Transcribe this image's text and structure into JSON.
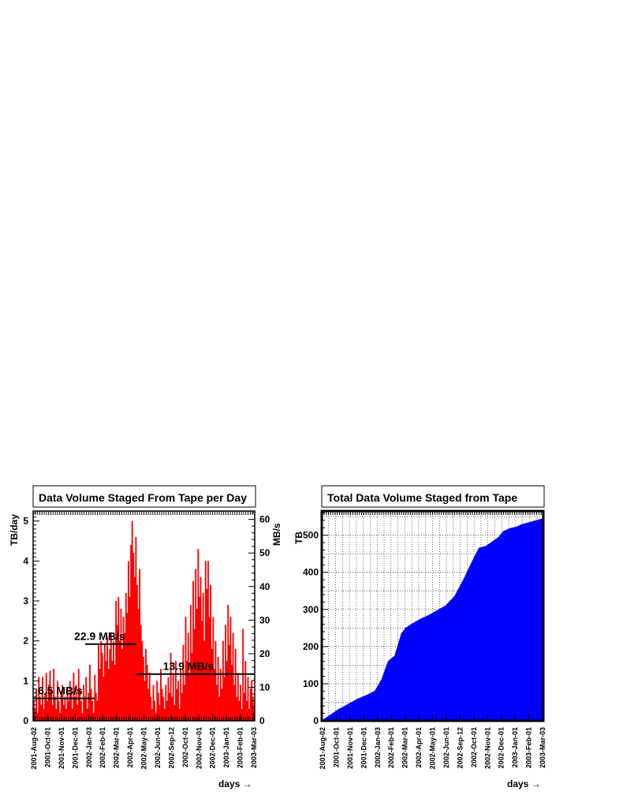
{
  "chart_data": [
    {
      "type": "bar",
      "title": "Data Volume Staged From Tape per Day",
      "ylabel": "TB/day",
      "y2label": "MB/s",
      "xlabel": "days →",
      "ylim": [
        0,
        5.25
      ],
      "y2lim": [
        0,
        62.5
      ],
      "yticks": [
        0,
        1,
        2,
        3,
        4,
        5
      ],
      "y2ticks": [
        0,
        10,
        20,
        30,
        40,
        50,
        60
      ],
      "xtick_labels": [
        "2001-Aug-02",
        "2001-Oct-01",
        "2001-Nov-01",
        "2001-Dec-01",
        "2002-Jan-03",
        "2002-Feb-01",
        "2002-Mar-01",
        "2002-Apr-01",
        "2002-May-01",
        "2002-Jun-01",
        "2002-Sep-12",
        "2002-Oct-01",
        "2002-Nov-01",
        "2002-Dec-01",
        "2003-Jan-01",
        "2003-Feb-01",
        "2003-Mar-03"
      ],
      "color": "#ff0000",
      "values": [
        0.5,
        0.3,
        0.8,
        0.2,
        1.1,
        0.6,
        0.4,
        1.1,
        0.3,
        0.7,
        1.2,
        0.5,
        0.9,
        1.25,
        0.8,
        0.4,
        1.3,
        0.6,
        0.3,
        1.0,
        0.5,
        0.2,
        0.7,
        0.9,
        0.4,
        0.6,
        0.3,
        0.8,
        0.5,
        1.0,
        0.7,
        0.3,
        1.2,
        0.6,
        0.9,
        0.4,
        1.3,
        0.8,
        0.5,
        0.2,
        0.9,
        0.6,
        1.1,
        0.3,
        0.7,
        1.4,
        0.8,
        0.5,
        0.2,
        1.15,
        0.7,
        0.5,
        1.9,
        1.3,
        2.0,
        1.7,
        1.1,
        1.9,
        1.5,
        2.1,
        1.3,
        1.8,
        2.2,
        1.5,
        2.0,
        1.4,
        3.0,
        2.4,
        3.1,
        2.0,
        2.8,
        1.8,
        2.6,
        2.2,
        3.2,
        2.7,
        4.0,
        3.1,
        4.4,
        5.0,
        4.2,
        3.6,
        4.6,
        3.4,
        2.8,
        3.8,
        2.4,
        2.0,
        1.6,
        1.0,
        1.8,
        1.4,
        0.8,
        1.2,
        0.6,
        0.3,
        0.9,
        0.5,
        0.2,
        1.0,
        0.7,
        0.4,
        1.3,
        0.8,
        0.6,
        0.3,
        0.9,
        0.5,
        1.1,
        0.7,
        1.7,
        0.6,
        1.2,
        0.4,
        1.5,
        0.8,
        1.0,
        0.3,
        1.3,
        0.7,
        1.9,
        0.9,
        2.6,
        1.5,
        2.2,
        1.2,
        2.9,
        1.7,
        3.5,
        2.3,
        3.8,
        2.8,
        4.3,
        3.1,
        3.6,
        2.5,
        3.2,
        2.0,
        4.0,
        3.3,
        4.0,
        2.6,
        3.4,
        1.8,
        2.6,
        1.3,
        2.0,
        0.9,
        1.6,
        0.6,
        1.3,
        0.8,
        2.0,
        1.1,
        2.4,
        1.5,
        2.9,
        1.9,
        2.6,
        1.4,
        2.2,
        0.9,
        1.8,
        0.6,
        1.2,
        0.5,
        0.9,
        0.3,
        2.3,
        0.7,
        1.5,
        0.5,
        1.1,
        0.3,
        0.8,
        1.0,
        0.6,
        0.4
      ],
      "segments": [
        {
          "label": "6.5 MB/s",
          "x0": 0.0,
          "x1": 0.276,
          "y": 0.56
        },
        {
          "label": "22.9 MB/s",
          "x0": 0.235,
          "x1": 0.465,
          "y": 1.92
        },
        {
          "label": "13.9 MB/s",
          "x0": 0.465,
          "x1": 1.0,
          "y": 1.17
        }
      ]
    },
    {
      "type": "area",
      "title": "Total Data Volume Staged from Tape",
      "ylabel": "TB",
      "xlabel": "days →",
      "ylim": [
        0,
        565
      ],
      "yticks": [
        0,
        100,
        200,
        300,
        400,
        500
      ],
      "grid": true,
      "xtick_labels": [
        "2001-Aug-02",
        "2001-Oct-01",
        "2001-Nov-01",
        "2001-Dec-01",
        "2002-Jan-03",
        "2002-Feb-01",
        "2002-Mar-01",
        "2002-Apr-01",
        "2002-May-01",
        "2002-Jun-01",
        "2002-Sep-12",
        "2002-Oct-01",
        "2002-Nov-01",
        "2002-Dec-01",
        "2003-Jan-01",
        "2003-Feb-01",
        "2003-Mar-03"
      ],
      "color": "#0000ff",
      "x_frac": [
        0,
        0.02,
        0.05,
        0.08,
        0.1,
        0.13,
        0.16,
        0.2,
        0.24,
        0.27,
        0.3,
        0.33,
        0.36,
        0.38,
        0.4,
        0.42,
        0.44,
        0.46,
        0.48,
        0.5,
        0.53,
        0.56,
        0.6,
        0.64,
        0.68,
        0.71,
        0.74,
        0.77,
        0.8,
        0.82,
        0.85,
        0.88,
        0.9,
        0.93,
        0.96,
        1.0
      ],
      "values": [
        0,
        8,
        20,
        32,
        38,
        48,
        58,
        68,
        80,
        110,
        160,
        175,
        235,
        250,
        258,
        265,
        272,
        278,
        283,
        290,
        300,
        310,
        335,
        380,
        430,
        465,
        470,
        482,
        495,
        510,
        518,
        522,
        528,
        533,
        538,
        545
      ]
    }
  ]
}
